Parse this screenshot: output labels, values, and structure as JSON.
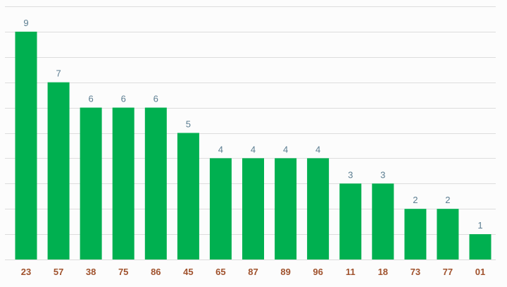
{
  "chart_data": {
    "type": "bar",
    "categories": [
      "23",
      "57",
      "38",
      "75",
      "86",
      "45",
      "65",
      "87",
      "89",
      "96",
      "11",
      "18",
      "73",
      "77",
      "01"
    ],
    "values": [
      9,
      7,
      6,
      6,
      6,
      5,
      4,
      4,
      4,
      4,
      3,
      3,
      2,
      2,
      1
    ],
    "title": "",
    "xlabel": "",
    "ylabel": "",
    "ylim": [
      0,
      10
    ],
    "grid": true,
    "legend": "none",
    "show_value_labels": true,
    "colors": {
      "bar": "#00b050",
      "grid": "#dddddd",
      "value_label": "#5b7d91",
      "tick_label": "#a0522d",
      "background": "#fcfcfc"
    }
  }
}
